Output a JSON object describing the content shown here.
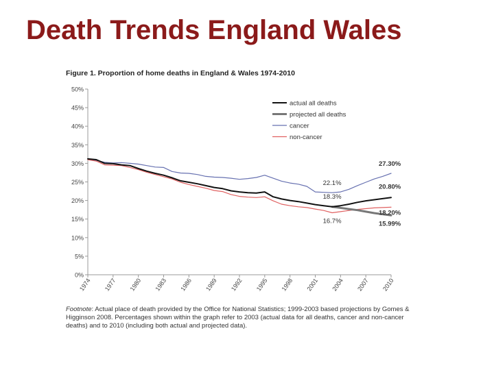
{
  "slide": {
    "title": "Death Trends England Wales"
  },
  "chart_data": {
    "type": "line",
    "title": "Figure 1. Proportion of home deaths in England & Wales 1974-2010",
    "xlabel": "",
    "ylabel": "",
    "ylim": [
      0,
      50
    ],
    "xlim": [
      1974,
      2010
    ],
    "x_ticks": [
      "1974",
      "1977",
      "1980",
      "1983",
      "1986",
      "1989",
      "1992",
      "1995",
      "1998",
      "2001",
      "2004",
      "2007",
      "2010"
    ],
    "y_ticks": [
      "0%",
      "5%",
      "10%",
      "15%",
      "20%",
      "25%",
      "30%",
      "35%",
      "40%",
      "45%",
      "50%"
    ],
    "series": [
      {
        "name": "actual all deaths",
        "color": "#111111",
        "x": [
          1974,
          1975,
          1976,
          1977,
          1978,
          1979,
          1980,
          1981,
          1982,
          1983,
          1984,
          1985,
          1986,
          1987,
          1988,
          1989,
          1990,
          1991,
          1992,
          1993,
          1994,
          1995,
          1996,
          1997,
          1998,
          1999,
          2000,
          2001,
          2002,
          2003,
          2004,
          2005,
          2006,
          2007,
          2008,
          2009,
          2010
        ],
        "y": [
          31.2,
          31.0,
          30.0,
          29.9,
          29.6,
          29.4,
          28.6,
          27.9,
          27.3,
          26.8,
          26.1,
          25.3,
          24.9,
          24.5,
          24.0,
          23.5,
          23.2,
          22.6,
          22.3,
          22.1,
          22.0,
          22.3,
          21.0,
          20.4,
          20.0,
          19.7,
          19.3,
          18.9,
          18.6,
          18.3,
          18.6,
          19.0,
          19.5,
          19.9,
          20.2,
          20.5,
          20.8
        ]
      },
      {
        "name": "projected all deaths",
        "color": "#777777",
        "x": [
          2003,
          2004,
          2005,
          2006,
          2007,
          2008,
          2009,
          2010
        ],
        "y": [
          18.3,
          18.0,
          17.7,
          17.4,
          17.0,
          16.6,
          16.3,
          15.99
        ]
      },
      {
        "name": "cancer",
        "color": "#6670b0",
        "x": [
          1974,
          1975,
          1976,
          1977,
          1978,
          1979,
          1980,
          1981,
          1982,
          1983,
          1984,
          1985,
          1986,
          1987,
          1988,
          1989,
          1990,
          1991,
          1992,
          1993,
          1994,
          1995,
          1996,
          1997,
          1998,
          1999,
          2000,
          2001,
          2002,
          2003,
          2004,
          2005,
          2006,
          2007,
          2008,
          2009,
          2010
        ],
        "y": [
          31.2,
          30.8,
          30.3,
          30.1,
          30.2,
          30.0,
          29.8,
          29.4,
          29.0,
          28.9,
          27.8,
          27.4,
          27.3,
          27.0,
          26.5,
          26.3,
          26.2,
          26.0,
          25.7,
          25.9,
          26.2,
          26.8,
          26.0,
          25.2,
          24.7,
          24.4,
          23.8,
          22.3,
          22.2,
          22.1,
          22.3,
          23.0,
          24.0,
          24.9,
          25.8,
          26.5,
          27.3
        ]
      },
      {
        "name": "non-cancer",
        "color": "#e06060",
        "x": [
          1974,
          1975,
          1976,
          1977,
          1978,
          1979,
          1980,
          1981,
          1982,
          1983,
          1984,
          1985,
          1986,
          1987,
          1988,
          1989,
          1990,
          1991,
          1992,
          1993,
          1994,
          1995,
          1996,
          1997,
          1998,
          1999,
          2000,
          2001,
          2002,
          2003,
          2004,
          2005,
          2006,
          2007,
          2008,
          2009,
          2010
        ],
        "y": [
          31.0,
          30.6,
          29.6,
          29.5,
          29.4,
          28.9,
          28.3,
          27.6,
          27.0,
          26.4,
          25.8,
          24.9,
          24.3,
          23.8,
          23.3,
          22.7,
          22.4,
          21.6,
          21.1,
          20.9,
          20.8,
          21.0,
          19.9,
          19.0,
          18.6,
          18.3,
          18.1,
          17.7,
          17.3,
          16.7,
          17.0,
          17.3,
          17.6,
          17.8,
          18.0,
          18.1,
          18.2
        ]
      }
    ],
    "annotations": [
      {
        "text": "27.30%",
        "x": 2010,
        "y": 27.3,
        "bold": true
      },
      {
        "text": "20.80%",
        "x": 2010,
        "y": 20.8,
        "bold": true
      },
      {
        "text": "18.20%",
        "x": 2010,
        "y": 18.2,
        "bold": true
      },
      {
        "text": "15.99%",
        "x": 2010,
        "y": 15.99,
        "bold": true
      },
      {
        "text": "22.1%",
        "x": 2003,
        "y": 22.1,
        "bold": false
      },
      {
        "text": "18.3%",
        "x": 2003,
        "y": 18.3,
        "bold": false
      },
      {
        "text": "16.7%",
        "x": 2003,
        "y": 16.7,
        "bold": false
      }
    ],
    "legend": {
      "placement": "top-right"
    }
  },
  "footnote": {
    "label": "Footnote",
    "text": ": Actual place of death provided by the Office for National Statistics; 1999-2003 based projections by Gomes & Higginson 2008. Percentages shown within the graph refer to 2003 (actual data for all deaths, cancer and non-cancer deaths) and to 2010 (including both actual and projected data)."
  }
}
